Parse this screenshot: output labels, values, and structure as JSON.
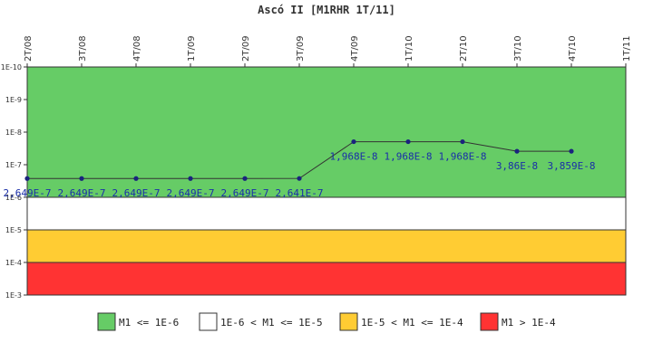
{
  "chart_data": {
    "type": "line",
    "title": "Ascó II [M1RHR 1T/11]",
    "xlabel": "",
    "ylabel": "",
    "y_scale": "log",
    "y_inverted": true,
    "ylim": [
      1e-10,
      0.001
    ],
    "x_ticks": [
      "2T/08",
      "3T/08",
      "4T/08",
      "1T/09",
      "2T/09",
      "3T/09",
      "4T/09",
      "1T/10",
      "2T/10",
      "3T/10",
      "4T/10",
      "1T/11"
    ],
    "y_ticks": [
      "1E-10",
      "1E-9",
      "1E-8",
      "1E-7",
      "1E-6",
      "1E-5",
      "1E-4",
      "1E-3"
    ],
    "series": [
      {
        "color": "#1a237e",
        "x": [
          "2T/08",
          "3T/08",
          "4T/08",
          "1T/09",
          "2T/09",
          "3T/09",
          "4T/09",
          "1T/10",
          "2T/10",
          "3T/10",
          "4T/10"
        ],
        "y": [
          2.649e-07,
          2.649e-07,
          2.649e-07,
          2.649e-07,
          2.649e-07,
          2.641e-07,
          1.968e-08,
          1.968e-08,
          1.968e-08,
          3.86e-08,
          3.859e-08
        ],
        "labels": [
          "2,649E-7",
          "2,649E-7",
          "2,649E-7",
          "2,649E-7",
          "2,649E-7",
          "2,641E-7",
          "1,968E-8",
          "1,968E-8",
          "1,968E-8",
          "3,86E-8",
          "3,859E-8"
        ]
      }
    ],
    "bands": [
      {
        "from": "1E-10",
        "to": "1E-6",
        "color": "#66cc66",
        "label": "M1 <= 1E-6"
      },
      {
        "from": "1E-6",
        "to": "1E-5",
        "color": "#ffffff",
        "label": "1E-6 < M1 <= 1E-5"
      },
      {
        "from": "1E-5",
        "to": "1E-4",
        "color": "#ffcc33",
        "label": "1E-5 < M1 <= 1E-4"
      },
      {
        "from": "1E-4",
        "to": "1E-3",
        "color": "#ff3333",
        "label": "M1 > 1E-4"
      }
    ],
    "legend_position": "bottom",
    "grid": false
  }
}
